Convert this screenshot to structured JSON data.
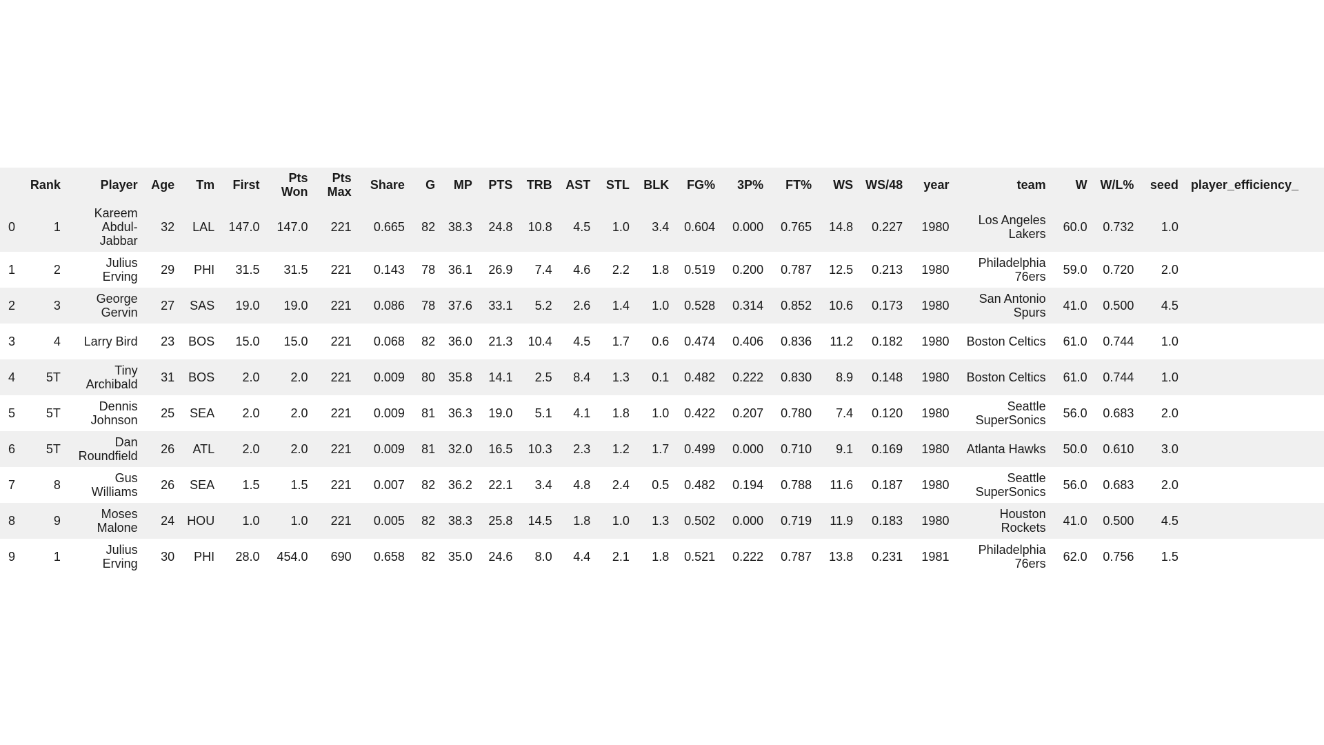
{
  "table": {
    "columns": [
      "",
      "Rank",
      "Player",
      "Age",
      "Tm",
      "First",
      "Pts Won",
      "Pts Max",
      "Share",
      "G",
      "MP",
      "PTS",
      "TRB",
      "AST",
      "STL",
      "BLK",
      "FG%",
      "3P%",
      "FT%",
      "WS",
      "WS/48",
      "year",
      "team",
      "W",
      "W/L%",
      "seed",
      "player_efficiency_"
    ],
    "rows": [
      [
        "0",
        "1",
        "Kareem Abdul-Jabbar",
        "32",
        "LAL",
        "147.0",
        "147.0",
        "221",
        "0.665",
        "82",
        "38.3",
        "24.8",
        "10.8",
        "4.5",
        "1.0",
        "3.4",
        "0.604",
        "0.000",
        "0.765",
        "14.8",
        "0.227",
        "1980",
        "Los Angeles Lakers",
        "60.0",
        "0.732",
        "1.0",
        ""
      ],
      [
        "1",
        "2",
        "Julius Erving",
        "29",
        "PHI",
        "31.5",
        "31.5",
        "221",
        "0.143",
        "78",
        "36.1",
        "26.9",
        "7.4",
        "4.6",
        "2.2",
        "1.8",
        "0.519",
        "0.200",
        "0.787",
        "12.5",
        "0.213",
        "1980",
        "Philadelphia 76ers",
        "59.0",
        "0.720",
        "2.0",
        ""
      ],
      [
        "2",
        "3",
        "George Gervin",
        "27",
        "SAS",
        "19.0",
        "19.0",
        "221",
        "0.086",
        "78",
        "37.6",
        "33.1",
        "5.2",
        "2.6",
        "1.4",
        "1.0",
        "0.528",
        "0.314",
        "0.852",
        "10.6",
        "0.173",
        "1980",
        "San Antonio Spurs",
        "41.0",
        "0.500",
        "4.5",
        ""
      ],
      [
        "3",
        "4",
        "Larry Bird",
        "23",
        "BOS",
        "15.0",
        "15.0",
        "221",
        "0.068",
        "82",
        "36.0",
        "21.3",
        "10.4",
        "4.5",
        "1.7",
        "0.6",
        "0.474",
        "0.406",
        "0.836",
        "11.2",
        "0.182",
        "1980",
        "Boston Celtics",
        "61.0",
        "0.744",
        "1.0",
        ""
      ],
      [
        "4",
        "5T",
        "Tiny Archibald",
        "31",
        "BOS",
        "2.0",
        "2.0",
        "221",
        "0.009",
        "80",
        "35.8",
        "14.1",
        "2.5",
        "8.4",
        "1.3",
        "0.1",
        "0.482",
        "0.222",
        "0.830",
        "8.9",
        "0.148",
        "1980",
        "Boston Celtics",
        "61.0",
        "0.744",
        "1.0",
        ""
      ],
      [
        "5",
        "5T",
        "Dennis Johnson",
        "25",
        "SEA",
        "2.0",
        "2.0",
        "221",
        "0.009",
        "81",
        "36.3",
        "19.0",
        "5.1",
        "4.1",
        "1.8",
        "1.0",
        "0.422",
        "0.207",
        "0.780",
        "7.4",
        "0.120",
        "1980",
        "Seattle SuperSonics",
        "56.0",
        "0.683",
        "2.0",
        ""
      ],
      [
        "6",
        "5T",
        "Dan Roundfield",
        "26",
        "ATL",
        "2.0",
        "2.0",
        "221",
        "0.009",
        "81",
        "32.0",
        "16.5",
        "10.3",
        "2.3",
        "1.2",
        "1.7",
        "0.499",
        "0.000",
        "0.710",
        "9.1",
        "0.169",
        "1980",
        "Atlanta Hawks",
        "50.0",
        "0.610",
        "3.0",
        ""
      ],
      [
        "7",
        "8",
        "Gus Williams",
        "26",
        "SEA",
        "1.5",
        "1.5",
        "221",
        "0.007",
        "82",
        "36.2",
        "22.1",
        "3.4",
        "4.8",
        "2.4",
        "0.5",
        "0.482",
        "0.194",
        "0.788",
        "11.6",
        "0.187",
        "1980",
        "Seattle SuperSonics",
        "56.0",
        "0.683",
        "2.0",
        ""
      ],
      [
        "8",
        "9",
        "Moses Malone",
        "24",
        "HOU",
        "1.0",
        "1.0",
        "221",
        "0.005",
        "82",
        "38.3",
        "25.8",
        "14.5",
        "1.8",
        "1.0",
        "1.3",
        "0.502",
        "0.000",
        "0.719",
        "11.9",
        "0.183",
        "1980",
        "Houston Rockets",
        "41.0",
        "0.500",
        "4.5",
        ""
      ],
      [
        "9",
        "1",
        "Julius Erving",
        "30",
        "PHI",
        "28.0",
        "454.0",
        "690",
        "0.658",
        "82",
        "35.0",
        "24.6",
        "8.0",
        "4.4",
        "2.1",
        "1.8",
        "0.521",
        "0.222",
        "0.787",
        "13.8",
        "0.231",
        "1981",
        "Philadelphia 76ers",
        "62.0",
        "0.756",
        "1.5",
        ""
      ]
    ]
  }
}
